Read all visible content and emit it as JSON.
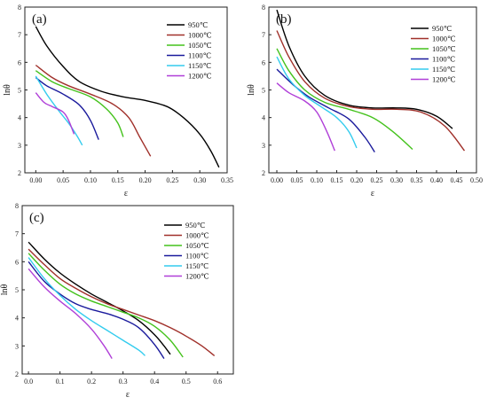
{
  "chart_data": [
    {
      "type": "line",
      "panel_label": "(a)",
      "xlabel": "ε",
      "ylabel": "lnθ",
      "xlim": [
        -0.02,
        0.35
      ],
      "ylim": [
        2,
        8
      ],
      "xticks": [
        0.0,
        0.05,
        0.1,
        0.15,
        0.2,
        0.25,
        0.3,
        0.35
      ],
      "xtick_labels": [
        "0.00",
        "0.05",
        "0.10",
        "0.15",
        "0.20",
        "0.25",
        "0.30",
        "0.35"
      ],
      "yticks": [
        2,
        3,
        4,
        5,
        6,
        7,
        8
      ],
      "legend_position": "top-right",
      "series": [
        {
          "name": "950℃",
          "color": "#000000",
          "x": [
            0,
            0.02,
            0.05,
            0.08,
            0.12,
            0.16,
            0.2,
            0.24,
            0.27,
            0.3,
            0.32,
            0.335
          ],
          "y": [
            7.3,
            6.6,
            5.85,
            5.3,
            4.95,
            4.75,
            4.62,
            4.4,
            4.0,
            3.4,
            2.8,
            2.2
          ]
        },
        {
          "name": "1000℃",
          "color": "#a0302a",
          "x": [
            0,
            0.03,
            0.06,
            0.1,
            0.14,
            0.17,
            0.19,
            0.21
          ],
          "y": [
            5.9,
            5.45,
            5.15,
            4.85,
            4.5,
            4.0,
            3.3,
            2.6
          ]
        },
        {
          "name": "1050℃",
          "color": "#44c21c",
          "x": [
            0,
            0.03,
            0.06,
            0.1,
            0.13,
            0.15,
            0.16
          ],
          "y": [
            5.7,
            5.3,
            5.05,
            4.75,
            4.3,
            3.8,
            3.3
          ]
        },
        {
          "name": "1100℃",
          "color": "#1a1a9c",
          "x": [
            0,
            0.02,
            0.05,
            0.08,
            0.1,
            0.115
          ],
          "y": [
            5.45,
            5.15,
            4.85,
            4.45,
            3.9,
            3.2
          ]
        },
        {
          "name": "1150℃",
          "color": "#33ccee",
          "x": [
            0,
            0.02,
            0.04,
            0.06,
            0.075,
            0.085
          ],
          "y": [
            5.5,
            4.85,
            4.3,
            3.8,
            3.35,
            3.0
          ]
        },
        {
          "name": "1200℃",
          "color": "#b03fd8",
          "x": [
            0,
            0.015,
            0.03,
            0.05,
            0.06,
            0.07
          ],
          "y": [
            4.9,
            4.55,
            4.4,
            4.2,
            3.9,
            3.4
          ]
        }
      ]
    },
    {
      "type": "line",
      "panel_label": "(b)",
      "xlabel": "ε",
      "ylabel": "lnθ",
      "xlim": [
        -0.02,
        0.5
      ],
      "ylim": [
        2,
        8
      ],
      "xticks": [
        0.0,
        0.05,
        0.1,
        0.15,
        0.2,
        0.25,
        0.3,
        0.35,
        0.4,
        0.45,
        0.5
      ],
      "xtick_labels": [
        "0.00",
        "0.05",
        "0.10",
        "0.15",
        "0.20",
        "0.25",
        "0.30",
        "0.35",
        "0.40",
        "0.45",
        "0.50"
      ],
      "yticks": [
        2,
        3,
        4,
        5,
        6,
        7,
        8
      ],
      "legend_position": "top-right",
      "series": [
        {
          "name": "950℃",
          "color": "#000000",
          "x": [
            0,
            0.03,
            0.07,
            0.12,
            0.18,
            0.24,
            0.3,
            0.35,
            0.4,
            0.44
          ],
          "y": [
            7.9,
            6.6,
            5.5,
            4.8,
            4.45,
            4.35,
            4.35,
            4.3,
            4.05,
            3.6
          ]
        },
        {
          "name": "1000℃",
          "color": "#a0302a",
          "x": [
            0,
            0.03,
            0.07,
            0.12,
            0.18,
            0.24,
            0.3,
            0.36,
            0.42,
            0.47
          ],
          "y": [
            7.15,
            6.2,
            5.3,
            4.7,
            4.4,
            4.3,
            4.3,
            4.2,
            3.7,
            2.8
          ]
        },
        {
          "name": "1050℃",
          "color": "#44c21c",
          "x": [
            0,
            0.03,
            0.07,
            0.12,
            0.18,
            0.24,
            0.29,
            0.34
          ],
          "y": [
            6.5,
            5.7,
            5.0,
            4.55,
            4.3,
            4.0,
            3.5,
            2.85
          ]
        },
        {
          "name": "1100℃",
          "color": "#1a1a9c",
          "x": [
            0,
            0.04,
            0.08,
            0.13,
            0.18,
            0.22,
            0.245
          ],
          "y": [
            5.75,
            5.2,
            4.75,
            4.35,
            3.95,
            3.3,
            2.75
          ]
        },
        {
          "name": "1150℃",
          "color": "#33ccee",
          "x": [
            0,
            0.03,
            0.07,
            0.11,
            0.15,
            0.18,
            0.2
          ],
          "y": [
            6.2,
            5.4,
            4.8,
            4.4,
            4.0,
            3.5,
            2.9
          ]
        },
        {
          "name": "1200℃",
          "color": "#b03fd8",
          "x": [
            0,
            0.03,
            0.07,
            0.1,
            0.125,
            0.145
          ],
          "y": [
            5.25,
            4.9,
            4.6,
            4.2,
            3.5,
            2.8
          ]
        }
      ]
    },
    {
      "type": "line",
      "panel_label": "(c)",
      "xlabel": "ε",
      "ylabel": "lnθ",
      "xlim": [
        -0.02,
        0.65
      ],
      "ylim": [
        2,
        8
      ],
      "xticks": [
        0.0,
        0.1,
        0.2,
        0.3,
        0.4,
        0.5,
        0.6
      ],
      "xtick_labels": [
        "0.0",
        "0.1",
        "0.2",
        "0.3",
        "0.4",
        "0.5",
        "0.6"
      ],
      "yticks": [
        2,
        3,
        4,
        5,
        6,
        7,
        8
      ],
      "legend_position": "top-right",
      "series": [
        {
          "name": "950℃",
          "color": "#000000",
          "x": [
            0,
            0.05,
            0.1,
            0.15,
            0.2,
            0.25,
            0.3,
            0.35,
            0.4,
            0.43,
            0.45
          ],
          "y": [
            6.7,
            6.1,
            5.6,
            5.2,
            4.85,
            4.55,
            4.25,
            3.9,
            3.4,
            3.0,
            2.7
          ]
        },
        {
          "name": "1000℃",
          "color": "#a0302a",
          "x": [
            0,
            0.05,
            0.1,
            0.15,
            0.2,
            0.25,
            0.3,
            0.35,
            0.4,
            0.45,
            0.5,
            0.55,
            0.59
          ],
          "y": [
            6.45,
            5.9,
            5.4,
            5.05,
            4.75,
            4.5,
            4.3,
            4.1,
            3.9,
            3.65,
            3.35,
            3.0,
            2.65
          ]
        },
        {
          "name": "1050℃",
          "color": "#44c21c",
          "x": [
            0,
            0.05,
            0.1,
            0.15,
            0.2,
            0.25,
            0.3,
            0.35,
            0.4,
            0.45,
            0.49
          ],
          "y": [
            6.3,
            5.7,
            5.2,
            4.85,
            4.6,
            4.4,
            4.2,
            4.0,
            3.7,
            3.2,
            2.6
          ]
        },
        {
          "name": "1100℃",
          "color": "#1a1a9c",
          "x": [
            0,
            0.05,
            0.1,
            0.15,
            0.2,
            0.25,
            0.3,
            0.35,
            0.4,
            0.43
          ],
          "y": [
            6.0,
            5.3,
            4.85,
            4.5,
            4.3,
            4.15,
            3.95,
            3.65,
            3.05,
            2.55
          ]
        },
        {
          "name": "1150℃",
          "color": "#33ccee",
          "x": [
            0,
            0.05,
            0.1,
            0.15,
            0.2,
            0.25,
            0.3,
            0.35,
            0.37
          ],
          "y": [
            6.15,
            5.4,
            4.8,
            4.3,
            3.9,
            3.55,
            3.2,
            2.85,
            2.65
          ]
        },
        {
          "name": "1200℃",
          "color": "#b03fd8",
          "x": [
            0,
            0.05,
            0.1,
            0.15,
            0.2,
            0.24,
            0.265
          ],
          "y": [
            5.75,
            5.1,
            4.6,
            4.15,
            3.6,
            3.0,
            2.55
          ]
        }
      ]
    }
  ]
}
